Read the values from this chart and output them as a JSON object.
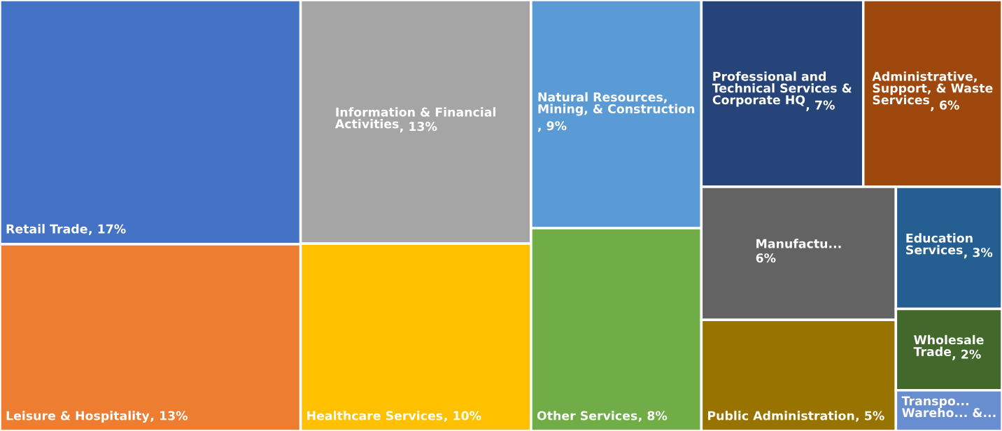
{
  "chart_data": {
    "type": "other",
    "categories": [
      "Retail Trade",
      "Leisure & Hospitality",
      "Information & Financial Activities",
      "Healthcare Services",
      "Natural Resources, Mining, & Construction",
      "Other Services",
      "Professional and Technical Services & Corporate HQ",
      "Administrative, Support, & Waste Services",
      "Manufactu...",
      "Public Administration",
      "Education Services",
      "Wholesale Trade",
      "Transpo... Wareho... &..."
    ],
    "values": [
      17,
      13,
      13,
      10,
      9,
      8,
      7,
      6,
      6,
      5,
      3,
      2,
      null
    ],
    "value_labels": [
      ", 17%",
      ", 13%",
      ", 13%",
      ", 10%",
      ", 9%",
      ", 8%",
      ", 7%",
      ", 6%",
      "6%",
      ", 5%",
      ", 3%",
      ", 2%",
      null
    ],
    "colors": [
      "#4472c4",
      "#ed7d31",
      "#a5a5a5",
      "#ffc000",
      "#5b9bd5",
      "#70ad47",
      "#264478",
      "#9e480e",
      "#636363",
      "#997300",
      "#255e91",
      "#43682b",
      "#698ed0"
    ]
  }
}
